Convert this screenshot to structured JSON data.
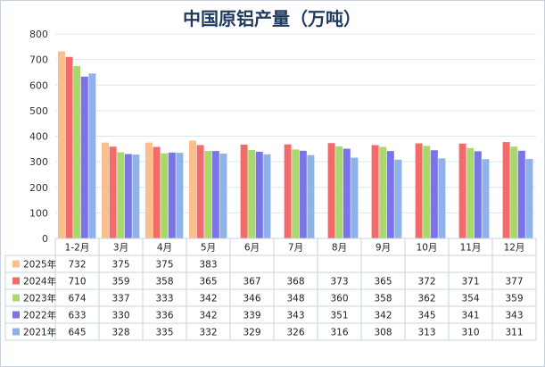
{
  "chart_data": {
    "type": "bar",
    "title": "中国原铝产量（万吨）",
    "categories": [
      "1-2月",
      "3月",
      "4月",
      "5月",
      "6月",
      "7月",
      "8月",
      "9月",
      "10月",
      "11月",
      "12月"
    ],
    "ylim": [
      0,
      800
    ],
    "yticks": [
      "0",
      "100",
      "200",
      "300",
      "400",
      "500",
      "600",
      "700",
      "800"
    ],
    "grid": true,
    "legend": "data-table-left",
    "series": [
      {
        "name": "2025年",
        "color": "#f9c08e",
        "values": [
          732,
          375,
          375,
          383,
          null,
          null,
          null,
          null,
          null,
          null,
          null
        ],
        "labels": [
          "732",
          "375",
          "375",
          "383",
          "",
          "",
          "",
          "",
          "",
          "",
          ""
        ]
      },
      {
        "name": "2024年",
        "color": "#f26b6b",
        "values": [
          710,
          359,
          358,
          365,
          367,
          368,
          373,
          365,
          372,
          371,
          377
        ],
        "labels": [
          "710",
          "359",
          "358",
          "365",
          "367",
          "368",
          "373",
          "365",
          "372",
          "371",
          "377"
        ]
      },
      {
        "name": "2023年",
        "color": "#a9d86e",
        "values": [
          674,
          337,
          333,
          342,
          346,
          348,
          360,
          358,
          362,
          354,
          359
        ],
        "labels": [
          "674",
          "337",
          "333",
          "342",
          "346",
          "348",
          "360",
          "358",
          "362",
          "354",
          "359"
        ]
      },
      {
        "name": "2022年",
        "color": "#7b74e8",
        "values": [
          633,
          330,
          336,
          342,
          339,
          343,
          351,
          342,
          345,
          341,
          343
        ],
        "labels": [
          "633",
          "330",
          "336",
          "342",
          "339",
          "343",
          "351",
          "342",
          "345",
          "341",
          "343"
        ]
      },
      {
        "name": "2021年",
        "color": "#8fb3e8",
        "values": [
          645,
          328,
          335,
          332,
          329,
          326,
          316,
          308,
          313,
          310,
          311
        ],
        "labels": [
          "645",
          "328",
          "335",
          "332",
          "329",
          "326",
          "316",
          "308",
          "313",
          "310",
          "311"
        ]
      }
    ]
  }
}
